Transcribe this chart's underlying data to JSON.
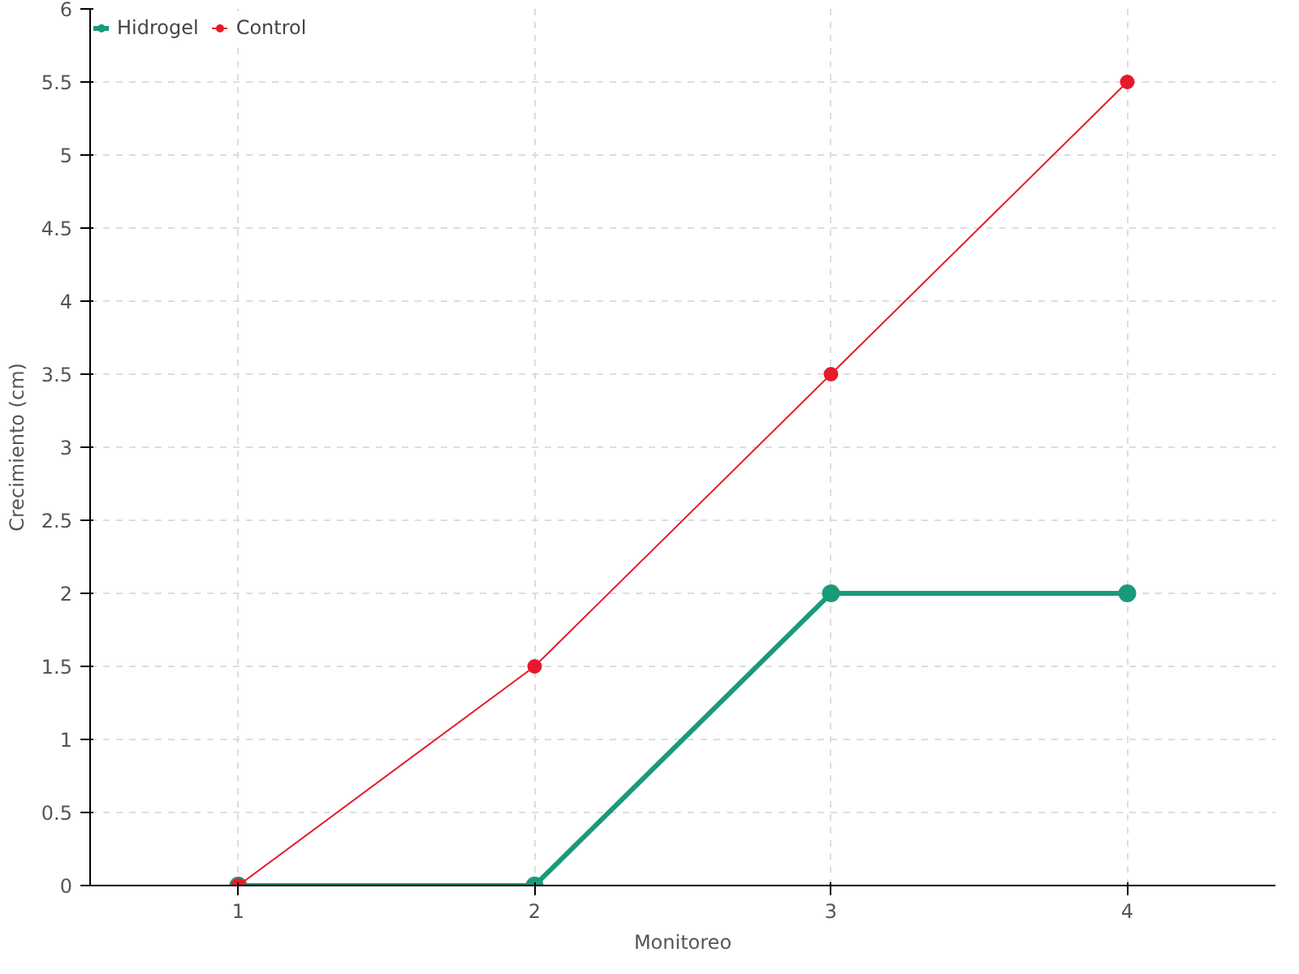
{
  "chart_data": {
    "type": "line",
    "xlabel": "Monitoreo",
    "ylabel": "Crecimiento (cm)",
    "x": [
      1,
      2,
      3,
      4
    ],
    "series": [
      {
        "name": "Hidrogel",
        "color": "#1a9a7a",
        "values": [
          0,
          0,
          2,
          2
        ]
      },
      {
        "name": "Control",
        "color": "#e8192c",
        "values": [
          0,
          1.5,
          3.5,
          5.5
        ]
      }
    ],
    "xlim": [
      0.5,
      4.5
    ],
    "xticks": [
      1,
      2,
      3,
      4
    ],
    "ylim": [
      0,
      6
    ],
    "yticks": [
      0,
      0.5,
      1,
      1.5,
      2,
      2.5,
      3,
      3.5,
      4,
      4.5,
      5,
      5.5,
      6
    ],
    "grid": true,
    "legend": "top left",
    "marker": "circle",
    "line_style": "solid"
  }
}
